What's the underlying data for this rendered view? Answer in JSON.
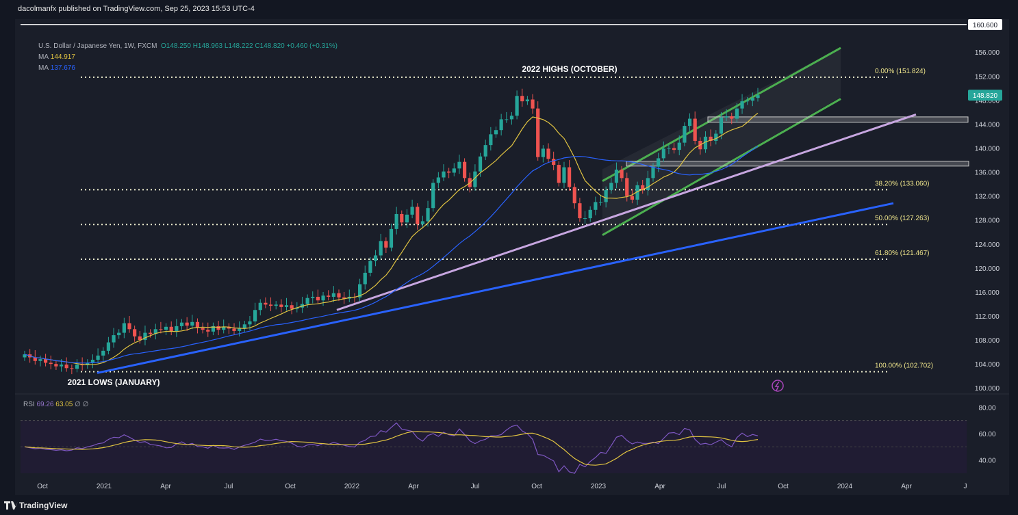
{
  "publisher": "dacolmanfx published on TradingView.com, Sep 25, 2023 15:53 UTC-4",
  "legend": {
    "symbol": "U.S. Dollar / Japanese Yen, 1W, FXCM",
    "ohlc": "O148.250  H148.963  L148.222  C148.820  +0.460 (+0.31%)",
    "ma1_label": "MA",
    "ma1_value": "144.917",
    "ma2_label": "MA",
    "ma2_value": "137.676"
  },
  "footer": {
    "brand": "TradingView"
  },
  "colors": {
    "bg": "#1a1e29",
    "up": "#26a69a",
    "down": "#ef5350",
    "ma_fast": "#e0c341",
    "ma_slow": "#2962ff",
    "channel": "#4caf50",
    "trend_lilac": "#c7a6e0",
    "trend_blue": "#2962ff",
    "fib": "#f0f0d0",
    "rsi": "#7e57c2",
    "rsi_ma": "#e0c341",
    "price_tag": "#26a69a"
  },
  "chart_data": [
    {
      "type": "candlestick",
      "title": "U.S. Dollar / Japanese Yen, 1W, FXCM",
      "ylim": [
        99.0,
        161.5
      ],
      "y_ticks": [
        "156.000",
        "152.000",
        "148.000",
        "144.000",
        "140.000",
        "136.000",
        "132.000",
        "128.000",
        "124.000",
        "120.000",
        "116.000",
        "112.000",
        "108.000",
        "104.000",
        "100.000"
      ],
      "x_ticks": [
        "Oct",
        "2021",
        "Apr",
        "Jul",
        "Oct",
        "2022",
        "Apr",
        "Jul",
        "Oct",
        "2023",
        "Apr",
        "Jul",
        "Oct",
        "2024",
        "Apr",
        "J"
      ],
      "last_price": "148.820",
      "top_price_tag": "160.600",
      "annotations": [
        "2022 HIGHS (OCTOBER)",
        "2021 LOWS (JANUARY)"
      ],
      "fib_levels": [
        {
          "label": "0.00% (151.824)",
          "value": 151.824
        },
        {
          "label": "38.20% (133.060)",
          "value": 133.06
        },
        {
          "label": "50.00% (127.263)",
          "value": 127.263
        },
        {
          "label": "61.80% (121.467)",
          "value": 121.467
        },
        {
          "label": "100.00% (102.702)",
          "value": 102.702
        }
      ],
      "closes": [
        105.6,
        105.1,
        104.5,
        104.8,
        104.2,
        104.0,
        103.6,
        103.9,
        103.3,
        103.2,
        103.9,
        103.8,
        104.2,
        104.7,
        105.4,
        106.2,
        107.6,
        108.8,
        109.2,
        110.8,
        109.8,
        108.6,
        108.0,
        109.2,
        109.0,
        109.8,
        109.7,
        110.2,
        109.4,
        110.3,
        110.9,
        110.4,
        111.0,
        110.0,
        109.7,
        109.4,
        110.3,
        109.7,
        110.2,
        109.9,
        109.5,
        109.9,
        110.6,
        111.1,
        113.0,
        114.2,
        113.9,
        113.7,
        113.9,
        113.5,
        113.8,
        113.2,
        113.4,
        114.0,
        115.0,
        115.2,
        114.6,
        115.4,
        115.2,
        115.8,
        115.1,
        114.9,
        115.2,
        115.1,
        117.3,
        119.2,
        121.2,
        122.1,
        124.5,
        123.4,
        126.5,
        129.0,
        127.6,
        128.9,
        130.2,
        127.3,
        127.8,
        130.0,
        134.2,
        135.1,
        136.1,
        135.9,
        136.6,
        137.7,
        135.0,
        133.5,
        136.1,
        138.6,
        140.5,
        142.3,
        143.0,
        144.8,
        144.8,
        145.4,
        148.7,
        147.8,
        148.1,
        146.6,
        138.5,
        139.9,
        138.2,
        137.2,
        134.2,
        136.8,
        133.5,
        130.8,
        128.3,
        128.3,
        129.7,
        131.0,
        131.0,
        133.0,
        134.2,
        136.4,
        135.0,
        132.0,
        131.4,
        133.8,
        133.0,
        135.0,
        136.9,
        138.3,
        139.9,
        140.0,
        139.7,
        140.9,
        143.7,
        144.9,
        141.2,
        139.8,
        141.9,
        141.2,
        142.4,
        145.1,
        145.3,
        144.9,
        146.6,
        147.8,
        147.9,
        148.36,
        148.82
      ],
      "ma_fast_last": 144.917,
      "ma_slow_last": 137.676
    },
    {
      "type": "line",
      "title": "RSI",
      "series": [
        {
          "name": "RSI",
          "last": "69.26"
        },
        {
          "name": "RSI MA",
          "last": "63.05"
        }
      ],
      "extra_label": "∅  ∅",
      "ylim": [
        30,
        90
      ],
      "y_ticks": [
        "80.00",
        "60.00",
        "40.00"
      ],
      "bands": [
        30,
        70
      ]
    }
  ]
}
